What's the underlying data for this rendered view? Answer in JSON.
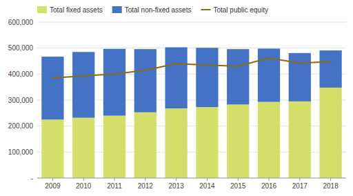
{
  "chart_data": {
    "type": "bar",
    "stacked": true,
    "categories": [
      "2009",
      "2010",
      "2011",
      "2012",
      "2013",
      "2014",
      "2015",
      "2016",
      "2017",
      "2018"
    ],
    "series": [
      {
        "name": "Total fixed assets",
        "color": "#d4df6a",
        "values": [
          225000,
          232000,
          240000,
          253000,
          268000,
          273000,
          283000,
          293000,
          295000,
          348000
        ]
      },
      {
        "name": "Total non-fixed assets",
        "color": "#4472c4",
        "values": [
          242000,
          253000,
          257000,
          243000,
          235000,
          228000,
          213000,
          205000,
          186000,
          143000
        ]
      },
      {
        "name": "Total public equity",
        "type": "line",
        "color": "#8b6b14",
        "values": [
          385000,
          393000,
          400000,
          415000,
          440000,
          435000,
          430000,
          462000,
          442000,
          448000
        ]
      }
    ],
    "ylim": [
      0,
      600000
    ],
    "yticks": [
      {
        "value": 0,
        "label": "-"
      },
      {
        "value": 100000,
        "label": "100,000"
      },
      {
        "value": 200000,
        "label": "200,000"
      },
      {
        "value": 300000,
        "label": "300,000"
      },
      {
        "value": 400000,
        "label": "400,000"
      },
      {
        "value": 500000,
        "label": "500,000"
      },
      {
        "value": 600000,
        "label": "600,000"
      }
    ],
    "grid": true,
    "legend": "top"
  }
}
